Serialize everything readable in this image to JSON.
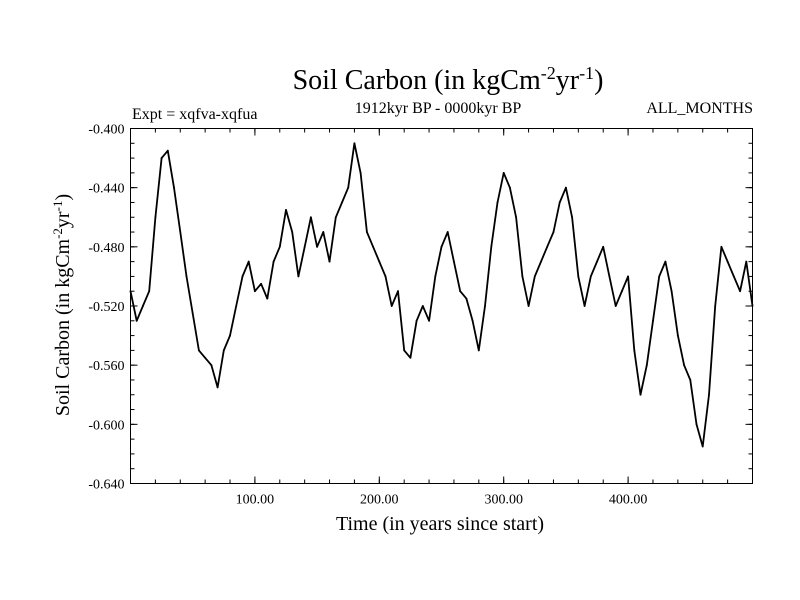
{
  "chart_data": {
    "type": "line",
    "title": {
      "main": "Soil Carbon (in kgCm",
      "exp1": "-2",
      "mid": "yr",
      "exp2": "-1",
      "end": ")"
    },
    "subtitle_left": "Expt = xqfva-xqfua",
    "subtitle_center": "1912kyr BP - 0000kyr BP",
    "subtitle_right": "ALL_MONTHS",
    "xlabel": "Time (in years since start)",
    "ylabel": {
      "main": "Soil Carbon (in kgCm",
      "exp1": "-2",
      "mid": "yr",
      "exp2": "-1",
      "end": ")"
    },
    "xlim": [
      0,
      500
    ],
    "ylim": [
      -0.64,
      -0.4
    ],
    "xticks": [
      100,
      200,
      300,
      400
    ],
    "xtick_labels": [
      "100.00",
      "200.00",
      "300.00",
      "400.00"
    ],
    "yticks": [
      -0.4,
      -0.44,
      -0.48,
      -0.52,
      -0.56,
      -0.6,
      -0.64
    ],
    "ytick_labels": [
      "-0.400",
      "-0.440",
      "-0.480",
      "-0.520",
      "-0.560",
      "-0.600",
      "-0.640"
    ],
    "grid": false,
    "series": [
      {
        "color": "#000000",
        "x": [
          0,
          5,
          10,
          15,
          20,
          25,
          30,
          35,
          40,
          45,
          50,
          55,
          60,
          65,
          70,
          75,
          80,
          85,
          90,
          95,
          100,
          105,
          110,
          115,
          120,
          125,
          130,
          135,
          140,
          145,
          150,
          155,
          160,
          165,
          170,
          175,
          180,
          185,
          190,
          195,
          200,
          205,
          210,
          215,
          220,
          225,
          230,
          235,
          240,
          245,
          250,
          255,
          260,
          265,
          270,
          275,
          280,
          285,
          290,
          295,
          300,
          305,
          310,
          315,
          320,
          325,
          330,
          335,
          340,
          345,
          350,
          355,
          360,
          365,
          370,
          375,
          380,
          385,
          390,
          395,
          400,
          405,
          410,
          415,
          420,
          425,
          430,
          435,
          440,
          445,
          450,
          455,
          460,
          465,
          470,
          475,
          480,
          485,
          490,
          495,
          500
        ],
        "y": [
          -0.51,
          -0.53,
          -0.52,
          -0.51,
          -0.46,
          -0.42,
          -0.415,
          -0.44,
          -0.47,
          -0.5,
          -0.525,
          -0.55,
          -0.555,
          -0.56,
          -0.575,
          -0.55,
          -0.54,
          -0.52,
          -0.5,
          -0.49,
          -0.51,
          -0.505,
          -0.515,
          -0.49,
          -0.48,
          -0.455,
          -0.47,
          -0.5,
          -0.48,
          -0.46,
          -0.48,
          -0.47,
          -0.49,
          -0.46,
          -0.45,
          -0.44,
          -0.41,
          -0.43,
          -0.47,
          -0.48,
          -0.49,
          -0.5,
          -0.52,
          -0.51,
          -0.55,
          -0.555,
          -0.53,
          -0.52,
          -0.53,
          -0.5,
          -0.48,
          -0.47,
          -0.49,
          -0.51,
          -0.515,
          -0.53,
          -0.55,
          -0.52,
          -0.48,
          -0.45,
          -0.43,
          -0.44,
          -0.46,
          -0.5,
          -0.52,
          -0.5,
          -0.49,
          -0.48,
          -0.47,
          -0.45,
          -0.44,
          -0.46,
          -0.5,
          -0.52,
          -0.5,
          -0.49,
          -0.48,
          -0.5,
          -0.52,
          -0.51,
          -0.5,
          -0.55,
          -0.58,
          -0.56,
          -0.53,
          -0.5,
          -0.49,
          -0.51,
          -0.54,
          -0.56,
          -0.57,
          -0.6,
          -0.615,
          -0.58,
          -0.52,
          -0.48,
          -0.49,
          -0.5,
          -0.51,
          -0.49,
          -0.52
        ]
      }
    ]
  }
}
